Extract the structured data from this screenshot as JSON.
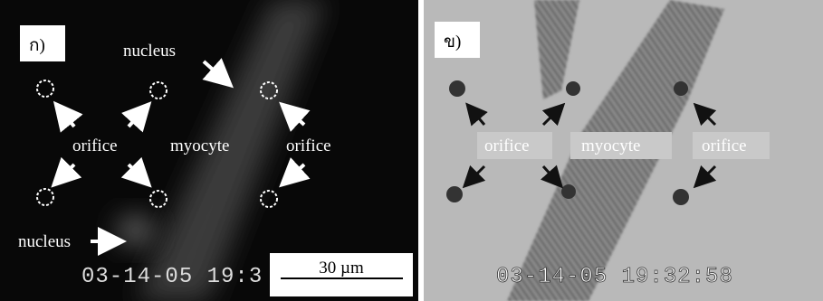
{
  "panels": [
    {
      "label": "ก)",
      "timestamp": "03-14-05 19:3",
      "scale_bar": "30 µm",
      "annotations": [
        "nucleus",
        "orifice",
        "myocyte",
        "orifice",
        "nucleus"
      ]
    },
    {
      "label": "ข)",
      "timestamp": "03-14-05 19:32:58",
      "annotations": [
        "orifice",
        "myocyte",
        "orifice"
      ]
    }
  ]
}
